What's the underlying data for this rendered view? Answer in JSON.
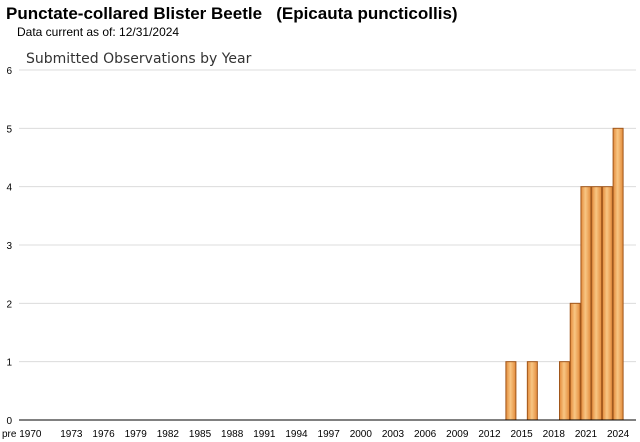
{
  "header": {
    "species_title": "Punctate-collared Blister Beetle   (Epicauta puncticollis)",
    "data_current": "Data current as of: 12/31/2024"
  },
  "colors": {
    "bar_fill_light": "#f8c683",
    "bar_fill_dark": "#e38a3a",
    "bar_stroke": "#a0561a",
    "gridline": "#dcdcdc"
  },
  "chart_data": {
    "type": "bar",
    "title": "Submitted Observations by Year",
    "xlabel": "",
    "ylabel": "",
    "ylim": [
      0,
      6
    ],
    "yticks": [
      0,
      1,
      2,
      3,
      4,
      5,
      6
    ],
    "grid": true,
    "categories": [
      "pre 1970",
      "1970",
      "1971",
      "1972",
      "1973",
      "1974",
      "1975",
      "1976",
      "1977",
      "1978",
      "1979",
      "1980",
      "1981",
      "1982",
      "1983",
      "1984",
      "1985",
      "1986",
      "1987",
      "1988",
      "1989",
      "1990",
      "1991",
      "1992",
      "1993",
      "1994",
      "1995",
      "1996",
      "1997",
      "1998",
      "1999",
      "2000",
      "2001",
      "2002",
      "2003",
      "2004",
      "2005",
      "2006",
      "2007",
      "2008",
      "2009",
      "2010",
      "2011",
      "2012",
      "2013",
      "2014",
      "2015",
      "2016",
      "2017",
      "2018",
      "2019",
      "2020",
      "2021",
      "2022",
      "2023",
      "2024"
    ],
    "values": [
      0,
      0,
      0,
      0,
      0,
      0,
      0,
      0,
      0,
      0,
      0,
      0,
      0,
      0,
      0,
      0,
      0,
      0,
      0,
      0,
      0,
      0,
      0,
      0,
      0,
      0,
      0,
      0,
      0,
      0,
      0,
      0,
      0,
      0,
      0,
      0,
      0,
      0,
      0,
      0,
      0,
      0,
      0,
      0,
      0,
      1,
      0,
      1,
      0,
      0,
      1,
      2,
      4,
      4,
      4,
      5
    ],
    "x_tick_labels": [
      "pre 1970",
      "1973",
      "1976",
      "1979",
      "1982",
      "1985",
      "1988",
      "1991",
      "1994",
      "1997",
      "2000",
      "2003",
      "2006",
      "2009",
      "2012",
      "2015",
      "2018",
      "2021",
      "2024"
    ]
  }
}
